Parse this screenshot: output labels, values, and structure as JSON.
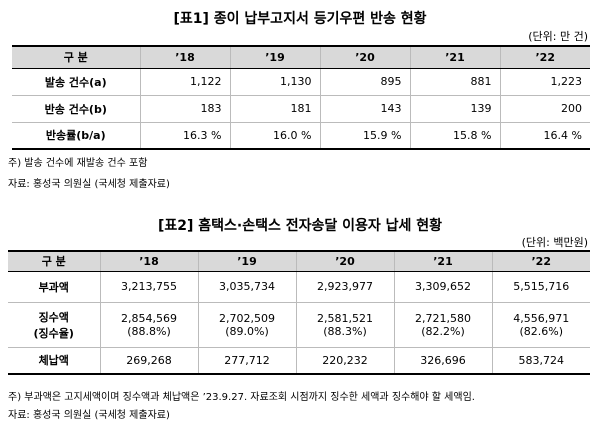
{
  "tables": [
    {
      "title": "[표1] 종이 납부고지서 등기우편 반송 현황",
      "unit": "(단위: 만 건)",
      "header": [
        "구 분",
        "’18",
        "’19",
        "’20",
        "’21",
        "’22"
      ],
      "rows": [
        [
          "발송 건수(a)",
          "1,122",
          "1,130",
          "895",
          "881",
          "1,223"
        ],
        [
          "반송 건수(b)",
          "183",
          "181",
          "143",
          "139",
          "200"
        ],
        [
          "반송률(b/a)",
          "16.3 %",
          "16.0 %",
          "15.9 %",
          "15.8 %",
          "16.4 %"
        ]
      ],
      "notes": [
        "주) 발송 건수에 재발송 건수 포함",
        "자료: 홍성국 의원실 (국세청 제출자료)"
      ]
    },
    {
      "title": "[표2] 홈택스·손택스 전자송달 이용자 납세 현황",
      "unit": "(단위: 백만원)",
      "header": [
        "구 분",
        "’18",
        "’19",
        "’20",
        "’21",
        "’22"
      ],
      "rows": [
        [
          "부과액",
          "3,213,755",
          "3,035,734",
          "2,923,977",
          "3,309,652",
          "5,515,716"
        ],
        [
          [
            "징수액",
            "(징수율)"
          ],
          [
            "2,854,569",
            "(88.8%)"
          ],
          [
            "2,702,509",
            "(89.0%)"
          ],
          [
            "2,581,521",
            "(88.3%)"
          ],
          [
            "2,721,580",
            "(82.2%)"
          ],
          [
            "4,556,971",
            "(82.6%)"
          ]
        ],
        [
          "체납액",
          "269,268",
          "277,712",
          "220,232",
          "326,696",
          "583,724"
        ]
      ],
      "notes": [
        "주) 부과액은 고지세액이며 징수액과 체납액은 ’23.9.27. 자료조회 시점까지 징수한 세액과 징수해야 할 세액임.",
        "자료: 홍성국 의원실 (국세청 제출자료)"
      ]
    }
  ]
}
